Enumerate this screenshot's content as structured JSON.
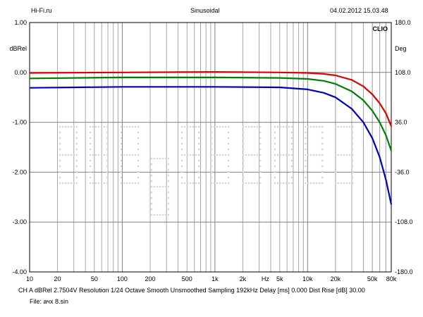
{
  "header": {
    "left": "Hi-Fi.ru",
    "center": "Sinusoidal",
    "right": "04.02.2012 15.03.48"
  },
  "chart_data": {
    "type": "line",
    "brand": "CLIO",
    "ylabel_left": "dBRel",
    "ylabel_right": "Deg",
    "xlabel": "Hz",
    "x_scale": "log",
    "xlim": [
      10,
      80000
    ],
    "ylim": [
      -4.0,
      1.0
    ],
    "y2lim": [
      -180.0,
      180.0
    ],
    "grid": true,
    "x_ticks": [
      {
        "v": 10,
        "label": "10"
      },
      {
        "v": 20,
        "label": "20"
      },
      {
        "v": 50,
        "label": "50"
      },
      {
        "v": 100,
        "label": "100"
      },
      {
        "v": 200,
        "label": "200"
      },
      {
        "v": 500,
        "label": "500"
      },
      {
        "v": 1000,
        "label": "1k"
      },
      {
        "v": 2000,
        "label": "2k"
      },
      {
        "v": 5000,
        "label": "5k"
      },
      {
        "v": 10000,
        "label": "10k"
      },
      {
        "v": 20000,
        "label": "20k"
      },
      {
        "v": 50000,
        "label": "50k"
      },
      {
        "v": 80000,
        "label": "80k"
      }
    ],
    "y_ticks": [
      {
        "v": 1.0,
        "label": "1.00"
      },
      {
        "v": 0.0,
        "label": "0.00"
      },
      {
        "v": -1.0,
        "label": "-1.00"
      },
      {
        "v": -2.0,
        "label": "-2.00"
      },
      {
        "v": -3.0,
        "label": "-3.00"
      },
      {
        "v": -4.0,
        "label": "-4.00"
      }
    ],
    "y2_ticks": [
      {
        "v": 180.0,
        "label": "180.0"
      },
      {
        "v": 108.0,
        "label": "108.0"
      },
      {
        "v": 36.0,
        "label": "36.0"
      },
      {
        "v": -36.0,
        "label": "-36.0"
      },
      {
        "v": -108.0,
        "label": "-108.0"
      },
      {
        "v": -180.0,
        "label": "-180.0"
      }
    ],
    "series": [
      {
        "color": "#e00000",
        "x": [
          10,
          100,
          1000,
          5000,
          10000,
          15000,
          20000,
          30000,
          40000,
          50000,
          60000,
          70000,
          80000
        ],
        "y": [
          -0.01,
          0.0,
          0.01,
          0.0,
          -0.01,
          -0.03,
          -0.06,
          -0.15,
          -0.28,
          -0.44,
          -0.62,
          -0.82,
          -1.08
        ]
      },
      {
        "color": "#008000",
        "x": [
          10,
          100,
          1000,
          5000,
          10000,
          15000,
          20000,
          30000,
          40000,
          50000,
          60000,
          70000,
          80000
        ],
        "y": [
          -0.12,
          -0.1,
          -0.1,
          -0.11,
          -0.13,
          -0.17,
          -0.23,
          -0.38,
          -0.56,
          -0.77,
          -1.0,
          -1.26,
          -1.57
        ]
      },
      {
        "color": "#0000c0",
        "x": [
          10,
          100,
          1000,
          5000,
          10000,
          15000,
          20000,
          30000,
          40000,
          50000,
          60000,
          70000,
          80000
        ],
        "y": [
          -0.31,
          -0.29,
          -0.29,
          -0.3,
          -0.34,
          -0.41,
          -0.5,
          -0.73,
          -1.0,
          -1.32,
          -1.7,
          -2.15,
          -2.65
        ]
      }
    ]
  },
  "footer": {
    "line1": "CH A   dBRel 2.7504V   Resolution 1/24 Octave   Smooth Unsmoothed   Sampling 192kHz   Delay [ms] 0.000     Dist Rise [dB] 30.00",
    "line2": "File: ачх 8.sin"
  }
}
